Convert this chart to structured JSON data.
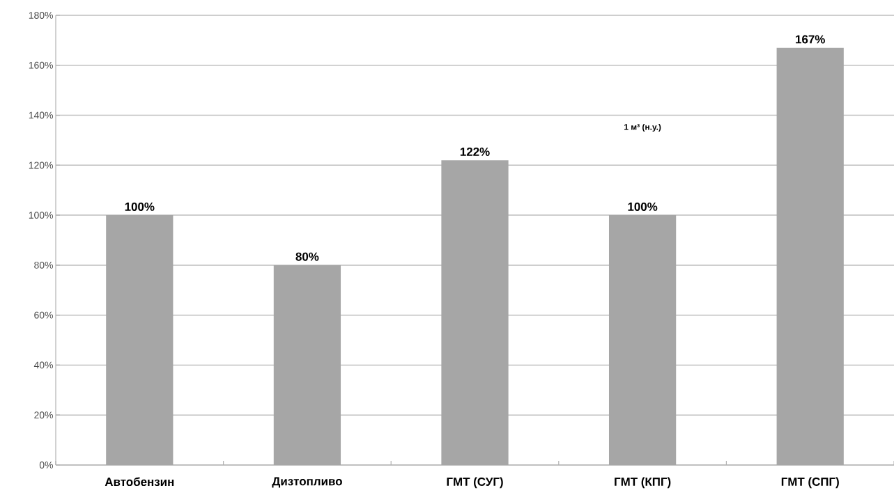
{
  "chart_data": {
    "type": "bar",
    "categories": [
      "Автобензин",
      "Дизтопливо",
      "ГМТ (СУГ)",
      "ГМТ (КПГ)",
      "ГМТ (СПГ)"
    ],
    "values": [
      100,
      80,
      122,
      100,
      167
    ],
    "value_labels": [
      "100%",
      "80%",
      "122%",
      "100%",
      "167%"
    ],
    "color": "#a6a6a6",
    "ylim": [
      0,
      180
    ],
    "yticks": [
      {
        "value": 0,
        "label": "0%"
      },
      {
        "value": 20,
        "label": "20%"
      },
      {
        "value": 40,
        "label": "40%"
      },
      {
        "value": 60,
        "label": "60%"
      },
      {
        "value": 80,
        "label": "80%"
      },
      {
        "value": 100,
        "label": "100%"
      },
      {
        "value": 120,
        "label": "120%"
      },
      {
        "value": 140,
        "label": "140%"
      },
      {
        "value": 160,
        "label": "160%"
      },
      {
        "value": 180,
        "label": "180%"
      }
    ],
    "grid": "y",
    "annotations": [
      "1 м³ (н.у.)"
    ]
  }
}
